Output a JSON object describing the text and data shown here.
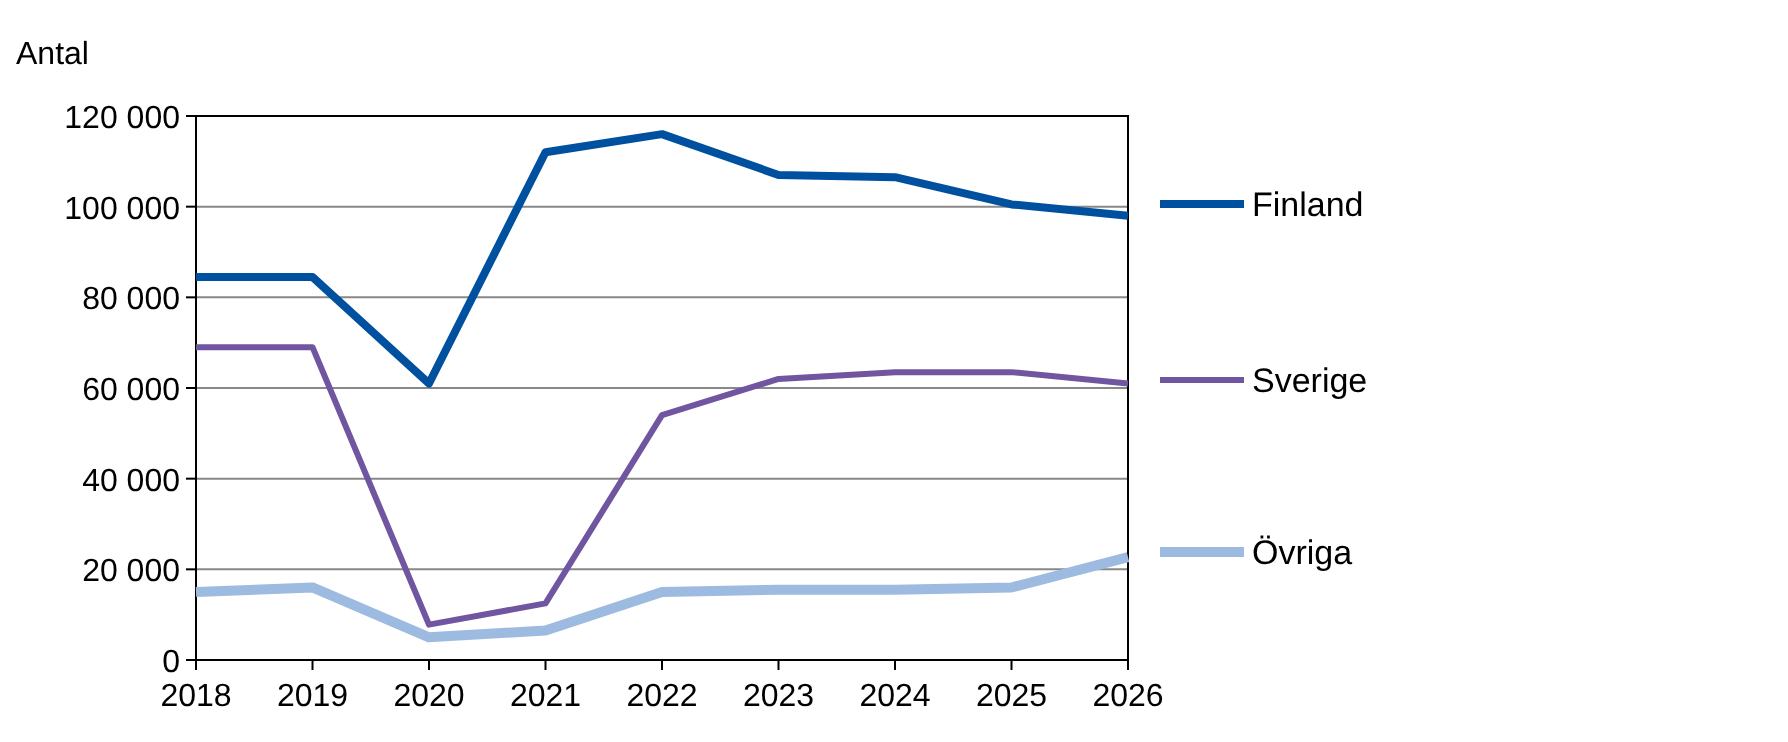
{
  "chart_data": {
    "type": "line",
    "ylabel": "Antal",
    "x": [
      2018,
      2019,
      2020,
      2021,
      2022,
      2023,
      2024,
      2025,
      2026
    ],
    "xlim": [
      2018,
      2026
    ],
    "xticks": [
      2018,
      2019,
      2020,
      2021,
      2022,
      2023,
      2024,
      2025,
      2026
    ],
    "ylim": [
      0,
      120000
    ],
    "yticks": [
      {
        "value": 0,
        "label": "0"
      },
      {
        "value": 20000,
        "label": "20 000"
      },
      {
        "value": 40000,
        "label": "40 000"
      },
      {
        "value": 60000,
        "label": "60 000"
      },
      {
        "value": 80000,
        "label": "80 000"
      },
      {
        "value": 100000,
        "label": "100 000"
      },
      {
        "value": 120000,
        "label": "120 000"
      }
    ],
    "grid": "y",
    "legend": "right",
    "marker": "none",
    "line_style": "solid",
    "series": [
      {
        "name": "Finland",
        "color": "#0050a0",
        "values": [
          84500,
          84500,
          61000,
          112000,
          116000,
          107000,
          106500,
          100500,
          98000
        ]
      },
      {
        "name": "Sverige",
        "color": "#7055a0",
        "values": [
          69000,
          69000,
          7800,
          12500,
          54000,
          62000,
          63500,
          63500,
          61000
        ]
      },
      {
        "name": "Övriga",
        "color": "#9dbbe0",
        "values": [
          15000,
          16000,
          5000,
          6500,
          15000,
          15500,
          15500,
          16000,
          22700
        ]
      }
    ]
  }
}
